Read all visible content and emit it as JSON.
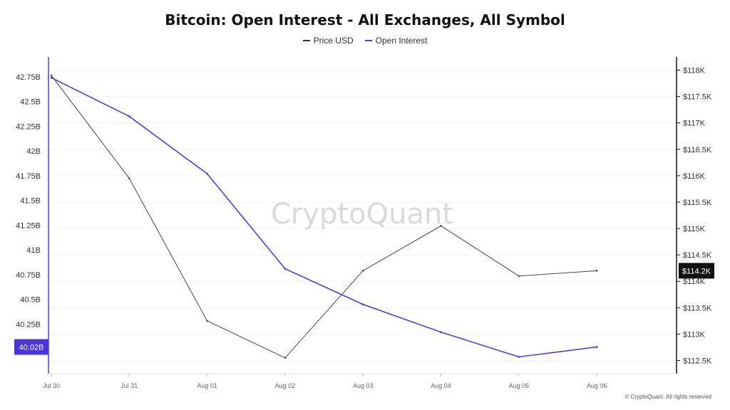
{
  "colors": {
    "price": "#333333",
    "open_interest": "#4f3fd6",
    "left_badge_bg": "#4a36d8",
    "right_badge_bg": "#111111",
    "grid": "#f0f0f0",
    "axis_left": "#4f3fd6",
    "axis_right": "#111111"
  },
  "watermark": "CryptoQuant",
  "copyright": "© CryptoQuant. All rights reserved",
  "chart_data": {
    "type": "line",
    "title": "Bitcoin: Open Interest - All Exchanges, All Symbol",
    "x": [
      "Jul 30",
      "Jul 31",
      "Aug 01",
      "Aug 02",
      "Aug 03",
      "Aug 04",
      "Aug 05",
      "Aug 06"
    ],
    "series": [
      {
        "name": "Price USD",
        "axis": "right",
        "values": [
          117900,
          115950,
          113250,
          112550,
          114200,
          115050,
          114100,
          114200
        ]
      },
      {
        "name": "Open Interest",
        "axis": "left",
        "values": [
          42.74,
          42.35,
          41.77,
          40.81,
          40.45,
          40.17,
          39.92,
          40.02
        ]
      }
    ],
    "y_left": {
      "min": 39.75,
      "max": 42.95,
      "ticks": [
        42.75,
        42.5,
        42.25,
        42,
        41.75,
        41.5,
        41.25,
        41,
        40.75,
        40.5,
        40.25
      ],
      "tick_labels": [
        "42.75B",
        "42.5B",
        "42.25B",
        "42B",
        "41.75B",
        "41.5B",
        "41.25B",
        "41B",
        "40.75B",
        "40.5B",
        "40.25B"
      ],
      "current_value": 40.02,
      "current_label": "40.02B"
    },
    "y_right": {
      "min": 112250,
      "max": 118250,
      "ticks": [
        118000,
        117500,
        117000,
        116500,
        116000,
        115500,
        115000,
        114500,
        114000,
        113500,
        113000,
        112500
      ],
      "tick_labels": [
        "$118K",
        "$117.5K",
        "$117K",
        "$116.5K",
        "$116K",
        "$115.5K",
        "$115K",
        "$114.5K",
        "$114K",
        "$113.5K",
        "$113K",
        "$112.5K"
      ],
      "current_value": 114200,
      "current_label": "$114.2K"
    },
    "grid": true,
    "legend_position": "top-center"
  }
}
